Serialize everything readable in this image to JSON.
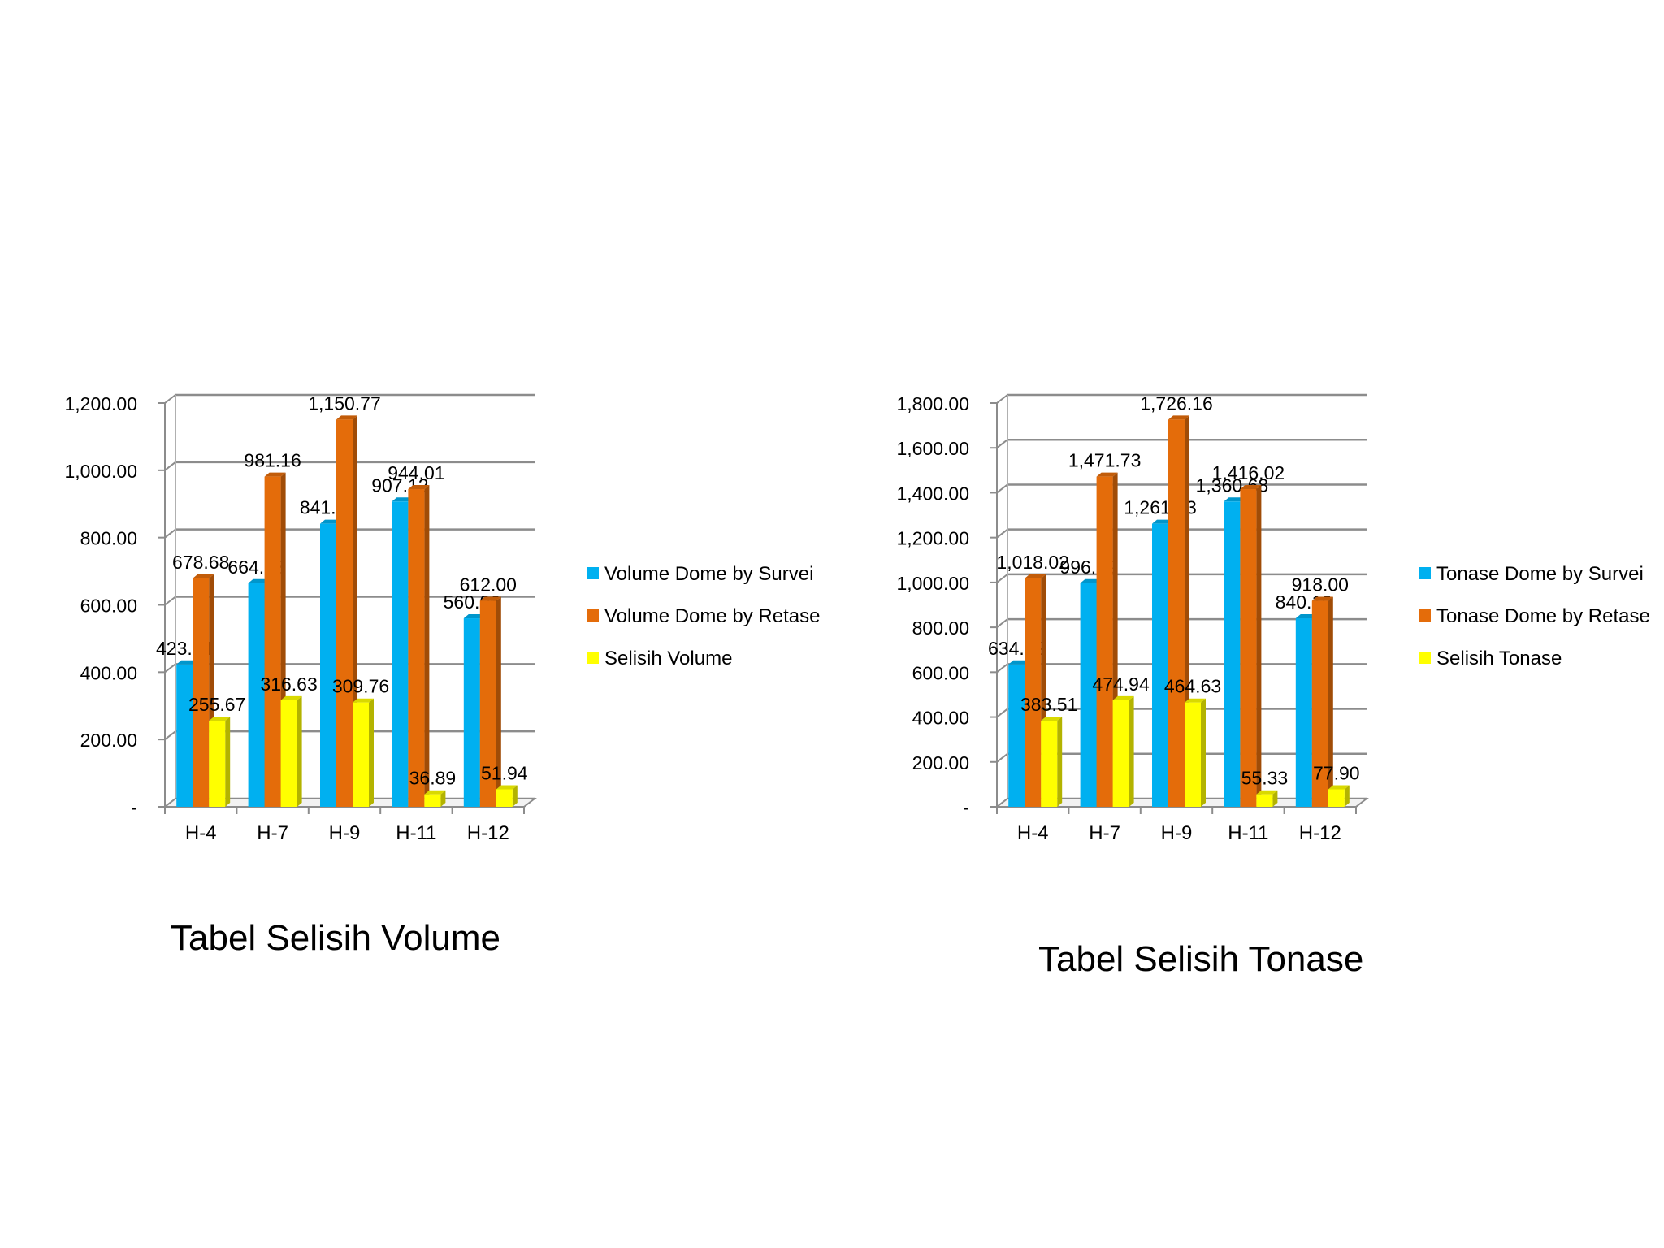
{
  "chart_data": [
    {
      "type": "bar",
      "title": "Tabel Selisih Volume",
      "categories": [
        "H-4",
        "H-7",
        "H-9",
        "H-11",
        "H-12"
      ],
      "series": [
        {
          "name": "Volume Dome by Survei",
          "values": [
            423.01,
            664.53,
            841.02,
            907.12,
            560.06
          ],
          "labels": [
            "423.01",
            "664.53",
            "841.02",
            "907.12",
            "560.06"
          ],
          "color": "#00b0f0"
        },
        {
          "name": "Volume Dome by Retase",
          "values": [
            678.68,
            981.16,
            1150.77,
            944.01,
            612.0
          ],
          "labels": [
            "678.68",
            "981.16",
            "1,150.77",
            "944.01",
            "612.00"
          ],
          "color": "#e46c0a"
        },
        {
          "name": "Selisih Volume",
          "values": [
            255.67,
            316.63,
            309.76,
            36.89,
            51.94
          ],
          "labels": [
            "255.67",
            "316.63",
            "309.76",
            "36.89",
            "51.94"
          ],
          "color": "#ffff00"
        }
      ],
      "ylim": [
        0,
        1200
      ],
      "yticks": [
        "-",
        "200.00",
        "400.00",
        "600.00",
        "800.00",
        "1,000.00",
        "1,200.00"
      ],
      "grid": true,
      "legend": "right"
    },
    {
      "type": "bar",
      "title": "Tabel Selisih Tonase",
      "categories": [
        "H-4",
        "H-7",
        "H-9",
        "H-11",
        "H-12"
      ],
      "series": [
        {
          "name": "Tonase Dome by Survei",
          "values": [
            634.52,
            996.79,
            1261.53,
            1360.68,
            840.1
          ],
          "labels": [
            "634.52",
            "996.79",
            "1,261.53",
            "1,360.68",
            "840.10"
          ],
          "color": "#00b0f0"
        },
        {
          "name": "Tonase Dome by Retase",
          "values": [
            1018.02,
            1471.73,
            1726.16,
            1416.02,
            918.0
          ],
          "labels": [
            "1,018.02",
            "1,471.73",
            "1,726.16",
            "1,416.02",
            "918.00"
          ],
          "color": "#e46c0a"
        },
        {
          "name": "Selisih Tonase",
          "values": [
            383.51,
            474.94,
            464.63,
            55.33,
            77.9
          ],
          "labels": [
            "383.51",
            "474.94",
            "464.63",
            "55.33",
            "77.90"
          ],
          "color": "#ffff00"
        }
      ],
      "ylim": [
        0,
        1800
      ],
      "yticks": [
        "-",
        "200.00",
        "400.00",
        "600.00",
        "800.00",
        "1,000.00",
        "1,200.00",
        "1,400.00",
        "1,600.00",
        "1,800.00"
      ],
      "grid": true,
      "legend": "right"
    }
  ]
}
